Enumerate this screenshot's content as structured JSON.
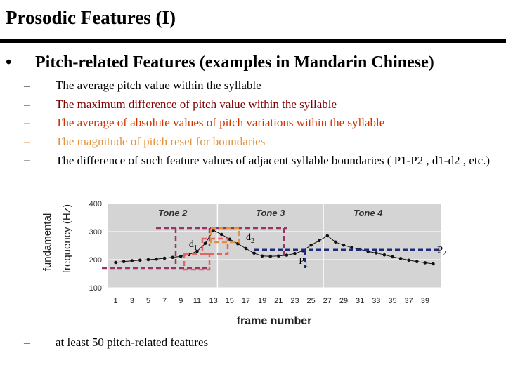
{
  "title": "Prosodic Features (I)",
  "main_bullet": {
    "marker": "•",
    "text": "Pitch-related Features (examples in Mandarin Chinese)"
  },
  "sub_bullets": [
    {
      "marker": "–",
      "text": "The average pitch value within the syllable",
      "color": "#000000"
    },
    {
      "marker": "–",
      "text": "The maximum difference of pitch value within the syllable",
      "color": "#800000"
    },
    {
      "marker": "–",
      "text": "The average of absolute values of pitch variations within the syllable",
      "color": "#cc3300"
    },
    {
      "marker": "–",
      "text": "The magnitude of pitch reset for boundaries",
      "color": "#e69138"
    },
    {
      "marker": "–",
      "text": "The difference of such feature values of adjacent syllable boundaries ( P1-P2 , d1-d2 , etc.)",
      "color": "#000000"
    }
  ],
  "last_bullet": {
    "marker": "–",
    "text": "at least 50 pitch-related features"
  },
  "chart_data": {
    "type": "line",
    "ylabel": "fundamental frequency (Hz)",
    "xlabel": "frame number",
    "xlim": [
      0,
      41
    ],
    "ylim": [
      100,
      400
    ],
    "grid": true,
    "x_ticks": [
      1,
      3,
      5,
      7,
      9,
      11,
      13,
      15,
      17,
      19,
      21,
      23,
      25,
      27,
      29,
      31,
      33,
      35,
      37,
      39
    ],
    "y_ticks": [
      100,
      200,
      300,
      400
    ],
    "tone_labels": [
      {
        "text": "Tone 2",
        "x": 8
      },
      {
        "text": "Tone 3",
        "x": 20
      },
      {
        "text": "Tone 4",
        "x": 32
      }
    ],
    "tone_boundaries": [
      13.5,
      26.5
    ],
    "series": [
      {
        "x": [
          1,
          2,
          3,
          4,
          5,
          6,
          7,
          8,
          9,
          10,
          11,
          12,
          13,
          14,
          15,
          16,
          17,
          18,
          19,
          20,
          21,
          22,
          23,
          24,
          25,
          26,
          27,
          28,
          29,
          30,
          31,
          32,
          33,
          34,
          35,
          36,
          37,
          38,
          39,
          40
        ],
        "values": [
          190,
          193,
          196,
          198,
          200,
          202,
          205,
          208,
          212,
          218,
          230,
          258,
          305,
          290,
          273,
          257,
          240,
          223,
          213,
          212,
          213,
          216,
          222,
          232,
          252,
          268,
          285,
          263,
          252,
          243,
          237,
          229,
          224,
          217,
          210,
          204,
          198,
          193,
          189,
          185
        ]
      }
    ],
    "annotations": [
      {
        "text": "d1",
        "x": 10,
        "y": 245
      },
      {
        "text": "d2",
        "x": 17,
        "y": 270
      },
      {
        "text": "P1",
        "x": 23.5,
        "y": 185
      },
      {
        "text": "P2",
        "x": 40.5,
        "y": 225
      }
    ],
    "annotation_colors": {
      "d_lines": "#993366",
      "boxes": "#e06666",
      "p_lines": "#1f2a7a"
    }
  }
}
